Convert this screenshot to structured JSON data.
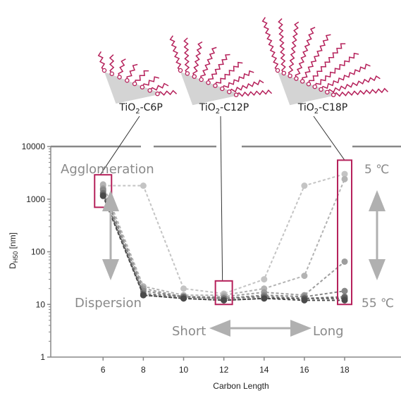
{
  "colors": {
    "highlight": "#b5205a",
    "chain": "#b5205a",
    "annotation": "#8a8a8a",
    "axis": "#888888",
    "arrow": "#b0b0b0",
    "surface": "#d4d4d4"
  },
  "labels": {
    "molecules": [
      {
        "main": "TiO",
        "sub": "2",
        "suffix": "-C6P"
      },
      {
        "main": "TiO",
        "sub": "2",
        "suffix": "-C12P"
      },
      {
        "main": "TiO",
        "sub": "2",
        "suffix": "-C18P"
      }
    ],
    "agglomeration": "Agglomeration",
    "dispersion": "Dispersion",
    "short": "Short",
    "long": "Long",
    "temp_low": "5 ℃",
    "temp_high": "55 ℃"
  },
  "chart_data": {
    "type": "line",
    "xlabel": "Carbon Length",
    "ylabel_main": "D",
    "ylabel_sub": "H50",
    "ylabel_unit": " [nm]",
    "yscale": "log",
    "ylim": [
      1,
      10000
    ],
    "xlim": [
      3.4,
      20.8
    ],
    "x": [
      6,
      8,
      10,
      12,
      14,
      16,
      18
    ],
    "xticks": [
      "6",
      "8",
      "10",
      "12",
      "14",
      "16",
      "18"
    ],
    "yticks": [
      "1",
      "10",
      "100",
      "1000",
      "10000"
    ],
    "ytick_values": [
      1,
      10,
      100,
      1000,
      10000
    ],
    "linestyle": "dashed",
    "series": [
      {
        "color": "#c4c4c4",
        "values": [
          1800,
          1800,
          20,
          16,
          30,
          1800,
          3000
        ]
      },
      {
        "color": "#b3b3b3",
        "values": [
          1900,
          22,
          15,
          15,
          20,
          35,
          2400
        ]
      },
      {
        "color": "#9d9d9d",
        "values": [
          1600,
          20,
          14,
          14,
          17,
          15,
          65
        ]
      },
      {
        "color": "#888888",
        "values": [
          1500,
          18,
          14,
          13,
          15,
          14,
          18
        ]
      },
      {
        "color": "#707070",
        "values": [
          1300,
          16,
          14,
          13,
          14,
          13,
          14
        ]
      },
      {
        "color": "#5a5a5a",
        "values": [
          1200,
          15,
          13,
          12,
          13,
          13,
          13
        ]
      },
      {
        "color": "#4a4a4a",
        "values": [
          1150,
          15,
          13,
          12,
          13,
          12,
          12
        ]
      }
    ],
    "highlights": [
      {
        "x": 6,
        "ymin": 700,
        "ymax": 2900
      },
      {
        "x": 12,
        "ymin": 10,
        "ymax": 28
      },
      {
        "x": 18,
        "ymin": 10,
        "ymax": 5500
      }
    ]
  }
}
